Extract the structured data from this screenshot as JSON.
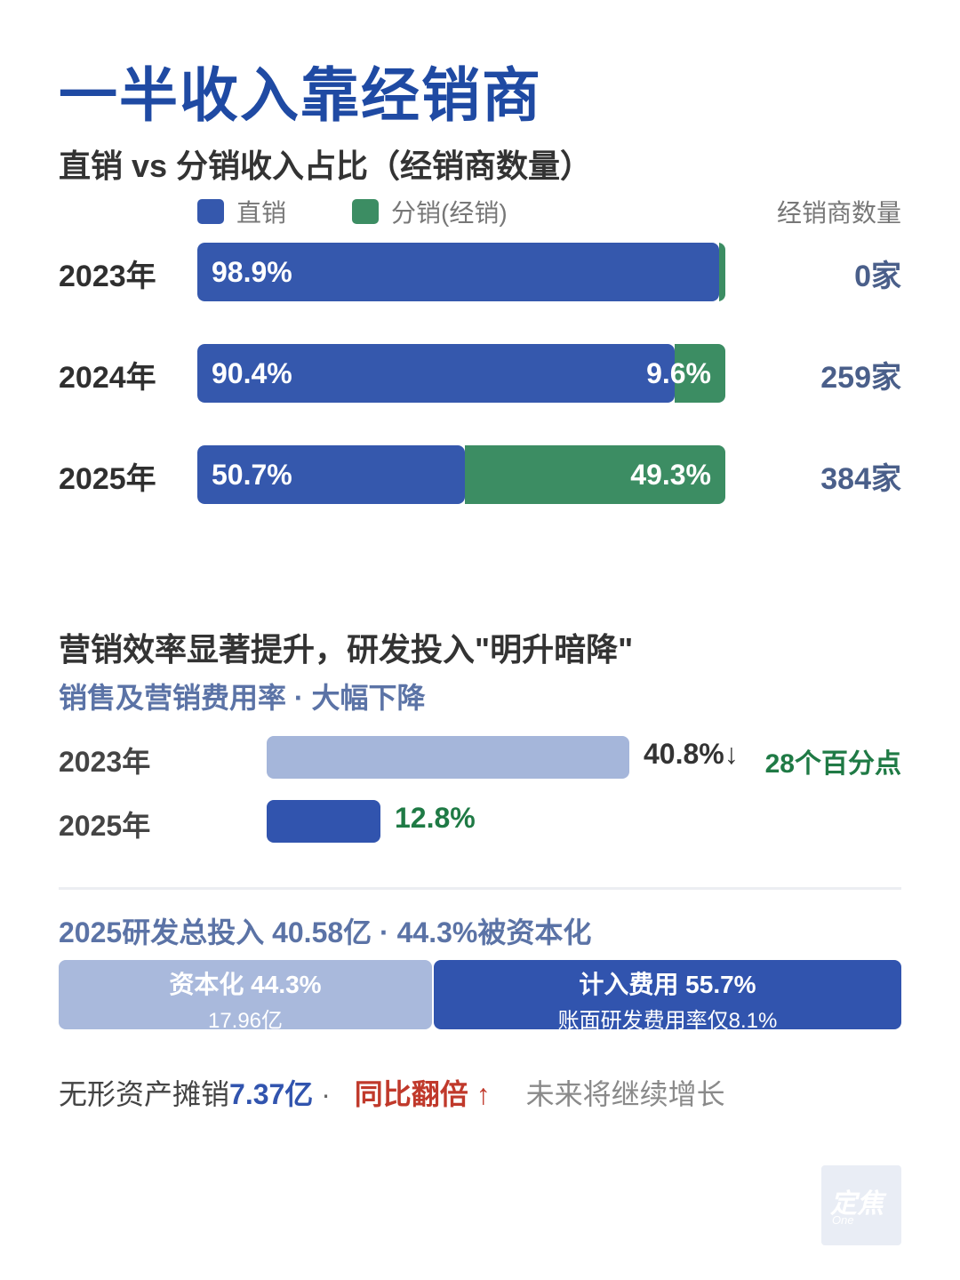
{
  "title": "一半收入靠经销商",
  "colors": {
    "direct": "#3558ad",
    "distribution": "#3c8d63",
    "light": "#a5b6da",
    "dark": "#3154ae",
    "green_text": "#1f7a45",
    "red_text": "#c0392b"
  },
  "chart_data": [
    {
      "type": "bar",
      "title": "直销 vs 分销收入占比（经销商数量）",
      "legend": [
        "直销",
        "分销(经销)"
      ],
      "count_header": "经销商数量",
      "categories": [
        "2023年",
        "2024年",
        "2025年"
      ],
      "series": [
        {
          "name": "直销",
          "values": [
            98.9,
            90.4,
            50.7
          ],
          "labels": [
            "98.9%",
            "90.4%",
            "50.7%"
          ]
        },
        {
          "name": "分销(经销)",
          "values": [
            1.1,
            9.6,
            49.3
          ],
          "labels": [
            "",
            "9.6%",
            "49.3%"
          ]
        }
      ],
      "counts": [
        "0家",
        "259家",
        "384家"
      ]
    },
    {
      "type": "bar",
      "title": "营销效率显著提升，研发投入\"明升暗降\"",
      "subtitle": "销售及营销费用率 · 大幅下降",
      "categories": [
        "2023年",
        "2025年"
      ],
      "values": [
        40.8,
        12.8
      ],
      "labels": [
        "40.8%↓",
        "12.8%"
      ],
      "annotation": "28个百分点"
    }
  ],
  "rd": {
    "headline": "2025研发总投入 40.58亿 · 44.3%被资本化",
    "capitalized": {
      "share": 44.3,
      "label": "资本化 44.3%",
      "sub": "17.96亿"
    },
    "expensed": {
      "share": 55.7,
      "label": "计入费用 55.7%",
      "sub": "账面研发费用率仅8.1%"
    }
  },
  "footer": {
    "prefix": "无形资产摊销 ",
    "value": "7.37亿",
    "sep": " · ",
    "highlight": "同比翻倍 ↑",
    "note": "未来将继续增长"
  },
  "logo": {
    "text": "定焦",
    "sub": "One"
  }
}
